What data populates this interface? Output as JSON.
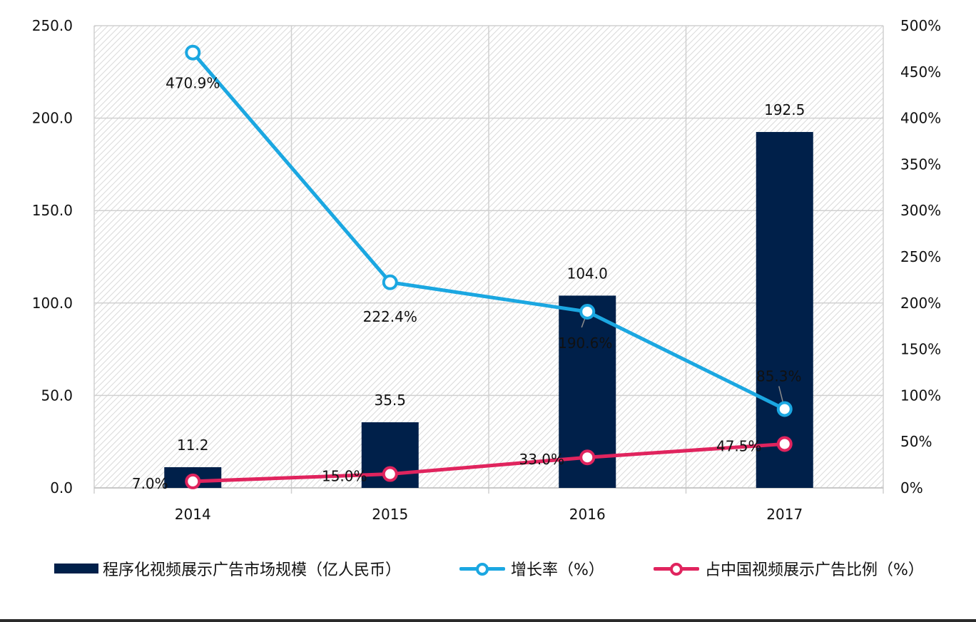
{
  "chart_data": {
    "type": "bar",
    "categories": [
      "2014",
      "2015",
      "2016",
      "2017"
    ],
    "series": [
      {
        "name": "程序化视频展示广告市场规模（亿人民币）",
        "kind": "bar",
        "axis": "left",
        "values": [
          11.2,
          35.5,
          104.0,
          192.5
        ],
        "labels": [
          "11.2",
          "35.5",
          "104.0",
          "192.5"
        ],
        "color": "#00204a"
      },
      {
        "name": "增长率（%）",
        "kind": "line",
        "axis": "right",
        "values": [
          470.9,
          222.4,
          190.6,
          85.3
        ],
        "labels": [
          "470.9%",
          "222.4%",
          "190.6%",
          "85.3%"
        ],
        "color": "#1ba7e1"
      },
      {
        "name": "占中国视频展示广告比例（%）",
        "kind": "line",
        "axis": "right",
        "values": [
          7.0,
          15.0,
          33.0,
          47.5
        ],
        "labels": [
          "7.0%",
          "15.0%",
          "33.0%",
          "47.5%"
        ],
        "color": "#e0245e"
      }
    ],
    "y_left": {
      "min": 0,
      "max": 250,
      "ticks": [
        "0.0",
        "50.0",
        "100.0",
        "150.0",
        "200.0",
        "250.0"
      ]
    },
    "y_right": {
      "min": 0,
      "max": 500,
      "ticks": [
        "0%",
        "50%",
        "100%",
        "150%",
        "200%",
        "250%",
        "300%",
        "350%",
        "400%",
        "450%",
        "500%"
      ]
    },
    "grid": true,
    "legend_position": "bottom"
  }
}
